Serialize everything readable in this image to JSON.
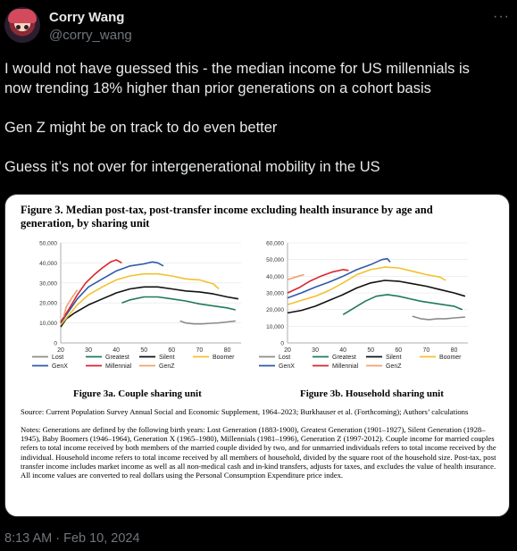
{
  "author": {
    "display_name": "Corry Wang",
    "handle": "@corry_wang"
  },
  "more_menu": "···",
  "tweet": {
    "paragraphs": [
      "I would not have guessed this - the median income for US millennials is",
      "now trending 18% higher than prior generations on a cohort basis",
      "Gen Z might be on track to do even better",
      "Guess it’s not over for intergenerational mobility in the US"
    ]
  },
  "figure": {
    "title_line1": "Figure 3. Median post-tax, post-transfer income excluding health insurance by age and",
    "title_line2": "generation, by sharing unit",
    "source": "Source: Current Population Survey Annual Social and Economic Supplement, 1964–2023; Burkhauser et al. (Forthcoming); Authors’ calculations",
    "notes": "Notes: Generations are defined by the following birth years: Lost Generation (1883-1900), Greatest Generation (1901–1927), Silent Generation (1928–1945), Baby Boomers (1946–1964), Generation X (1965–1980), Millennials (1981–1996), Generation Z (1997-2012). Couple income for married couples refers to total income received by both members of the married couple divided by two, and for unmarried individuals refers to total income received by the individual. Household income refers to total income received by all members of household, divided by the square root of the household size. Post-tax, post transfer income includes market income as well as all non-medical cash and in-kind transfers, adjusts for taxes, and excludes the value of health insurance. All income values are converted to real dollars using the Personal Consumption Expenditure price index."
  },
  "timestamp": "8:13 AM · Feb 10, 2024",
  "colors": {
    "Lost": "#8c8c8c",
    "Greatest": "#1f7a5a",
    "Silent": "#111111",
    "Boomer": "#f2c12e",
    "GenX": "#2e5aa8",
    "Millennial": "#d9262c",
    "GenZ": "#f0a070"
  },
  "chart_data": [
    {
      "type": "line",
      "title": "Figure 3a. Couple sharing unit",
      "xlabel": "",
      "ylabel": "",
      "xlim": [
        20,
        85
      ],
      "ylim": [
        0,
        50000
      ],
      "x_ticks": [
        "20",
        "30",
        "40",
        "50",
        "60",
        "70",
        "80"
      ],
      "y_ticks": [
        "0",
        "10,000",
        "20,000",
        "30,000",
        "40,000",
        "50,000"
      ],
      "legend_placement": "bottom",
      "series": [
        {
          "name": "Lost",
          "x": [
            63,
            65,
            68,
            71,
            74,
            77,
            80,
            83
          ],
          "values": [
            11000,
            10000,
            9500,
            9500,
            9800,
            10000,
            10500,
            11000
          ]
        },
        {
          "name": "Greatest",
          "x": [
            42,
            45,
            50,
            55,
            60,
            65,
            70,
            75,
            80,
            83
          ],
          "values": [
            20000,
            21500,
            23000,
            23000,
            22000,
            21000,
            19500,
            18500,
            17500,
            16500
          ]
        },
        {
          "name": "Silent",
          "x": [
            20,
            22,
            25,
            30,
            35,
            40,
            45,
            50,
            55,
            60,
            65,
            70,
            75,
            80,
            84
          ],
          "values": [
            8000,
            12000,
            15000,
            19000,
            22000,
            25000,
            27000,
            28000,
            28000,
            27000,
            26000,
            25500,
            24500,
            23000,
            22000
          ]
        },
        {
          "name": "Boomer",
          "x": [
            20,
            23,
            26,
            30,
            35,
            40,
            45,
            50,
            55,
            60,
            65,
            70,
            75,
            77
          ],
          "values": [
            9000,
            14000,
            19000,
            24000,
            28000,
            31500,
            33500,
            34500,
            34500,
            33500,
            32000,
            31500,
            29500,
            27000
          ]
        },
        {
          "name": "GenX",
          "x": [
            20,
            23,
            26,
            30,
            35,
            40,
            45,
            50,
            53,
            55,
            57
          ],
          "values": [
            10000,
            16000,
            22000,
            28000,
            32000,
            36000,
            38500,
            39500,
            40500,
            40000,
            38500
          ]
        },
        {
          "name": "Millennial",
          "x": [
            20,
            23,
            26,
            29,
            32,
            35,
            38,
            40,
            42
          ],
          "values": [
            10500,
            17000,
            24000,
            30000,
            34000,
            37500,
            40500,
            41500,
            40000
          ]
        },
        {
          "name": "GenZ",
          "x": [
            21,
            22,
            24,
            26
          ],
          "values": [
            13000,
            18000,
            22500,
            26500
          ]
        }
      ]
    },
    {
      "type": "line",
      "title": "Figure 3b. Household sharing unit",
      "xlabel": "",
      "ylabel": "",
      "xlim": [
        20,
        85
      ],
      "ylim": [
        0,
        60000
      ],
      "x_ticks": [
        "20",
        "30",
        "40",
        "50",
        "60",
        "70",
        "80"
      ],
      "y_ticks": [
        "0",
        "10,000",
        "20,000",
        "30,000",
        "40,000",
        "50,000",
        "60,000"
      ],
      "legend_placement": "bottom",
      "series": [
        {
          "name": "Lost",
          "x": [
            65,
            68,
            71,
            74,
            77,
            80,
            84
          ],
          "values": [
            16000,
            14500,
            14000,
            14500,
            14500,
            15000,
            15500
          ]
        },
        {
          "name": "Greatest",
          "x": [
            40,
            44,
            48,
            52,
            56,
            60,
            64,
            68,
            72,
            76,
            80,
            83
          ],
          "values": [
            17000,
            21000,
            25000,
            28000,
            29000,
            28000,
            26500,
            25000,
            24000,
            23000,
            22000,
            20000
          ]
        },
        {
          "name": "Silent",
          "x": [
            20,
            25,
            30,
            35,
            40,
            45,
            50,
            55,
            60,
            65,
            70,
            75,
            80,
            84
          ],
          "values": [
            18000,
            19500,
            22000,
            25500,
            29000,
            33000,
            36000,
            37500,
            37000,
            35500,
            34000,
            32000,
            30000,
            28000
          ]
        },
        {
          "name": "Boomer",
          "x": [
            20,
            25,
            30,
            35,
            40,
            45,
            50,
            55,
            60,
            65,
            70,
            75,
            77
          ],
          "values": [
            23000,
            25500,
            28000,
            31500,
            36000,
            41000,
            44000,
            45500,
            45000,
            43000,
            41000,
            39500,
            37500
          ]
        },
        {
          "name": "GenX",
          "x": [
            20,
            25,
            30,
            35,
            40,
            45,
            50,
            54,
            56,
            57
          ],
          "values": [
            27000,
            30000,
            33500,
            36500,
            40000,
            44000,
            47000,
            50000,
            50500,
            48500
          ]
        },
        {
          "name": "Millennial",
          "x": [
            20,
            24,
            28,
            32,
            36,
            40,
            42
          ],
          "values": [
            30000,
            33000,
            37000,
            40000,
            42500,
            44000,
            43500
          ]
        },
        {
          "name": "GenZ",
          "x": [
            20,
            22,
            24,
            26
          ],
          "values": [
            38000,
            39000,
            40000,
            41000
          ]
        }
      ]
    }
  ]
}
